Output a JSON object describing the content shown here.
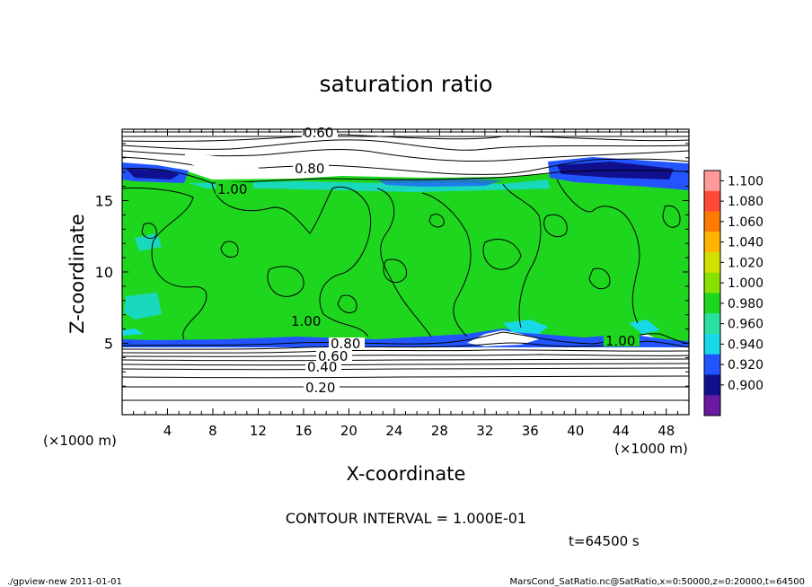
{
  "chart_data": {
    "type": "heatmap",
    "title": "saturation ratio",
    "xlabel": "X-coordinate",
    "ylabel": "Z-coordinate",
    "x_unit": "(×1000 m)",
    "z_unit": "(×1000 m)",
    "xlim": [
      0,
      50
    ],
    "ylim": [
      0,
      20
    ],
    "x_ticks": [
      "4",
      "8",
      "12",
      "16",
      "20",
      "24",
      "28",
      "32",
      "36",
      "40",
      "44",
      "48"
    ],
    "y_ticks": [
      "5",
      "10",
      "15"
    ],
    "colorbar": {
      "labels": [
        "1.100",
        "1.080",
        "1.060",
        "1.040",
        "1.020",
        "1.000",
        "0.980",
        "0.960",
        "0.940",
        "0.920",
        "0.900"
      ],
      "colors": [
        "#ff9a9a",
        "#ff4a3a",
        "#ff7a00",
        "#ffb400",
        "#d0e000",
        "#88e000",
        "#1fd61f",
        "#2ae0a0",
        "#19d8e6",
        "#2255ff",
        "#10108f",
        "#6a1aa0"
      ]
    },
    "contour_labels": [
      "0.60",
      "0.80",
      "1.00",
      "1.00",
      "1.00",
      "0.80",
      "0.60",
      "0.40",
      "0.20"
    ],
    "fields": {
      "upper_dry_layer_z": [
        16.5,
        20
      ],
      "saturated_layer_z": [
        5,
        16.5
      ],
      "lower_dry_layer_z": [
        0,
        5
      ],
      "dominant_value": "1.000"
    }
  },
  "contour_interval": "CONTOUR INTERVAL = 1.000E-01",
  "time_label": "t=64500 s",
  "footer_left": "./gpview-new   2011-01-01",
  "footer_right": "MarsCond_SatRatio.nc@SatRatio,x=0:50000,z=0:20000,t=64500"
}
